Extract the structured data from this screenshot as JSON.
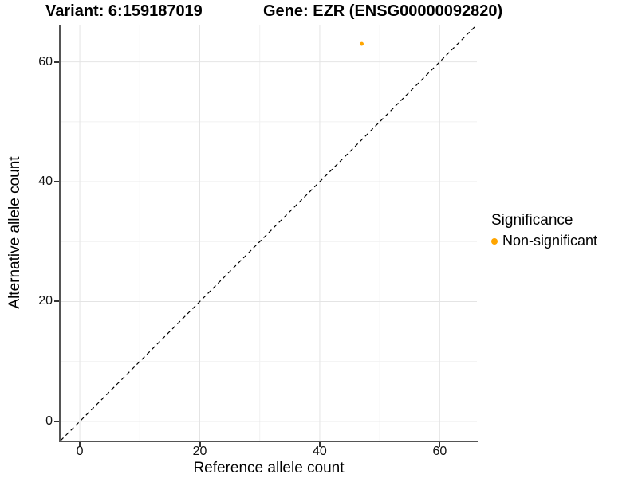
{
  "header": {
    "variant_title": "Variant: 6:159187019",
    "gene_title": "Gene: EZR (ENSG00000092820)"
  },
  "legend": {
    "title": "Significance",
    "items": [
      {
        "label": "Non-significant",
        "color": "#FFA500"
      }
    ]
  },
  "chart_data": {
    "type": "scatter",
    "title": "Variant: 6:159187019 — Gene: EZR (ENSG00000092820)",
    "xlabel": "Reference allele count",
    "ylabel": "Alternative allele count",
    "xlim": [
      -3.2,
      66.2
    ],
    "ylim": [
      -3.2,
      66.2
    ],
    "x_ticks": [
      0,
      20,
      40,
      60
    ],
    "y_ticks": [
      0,
      20,
      40,
      60
    ],
    "x_minor_ticks": [
      10,
      30,
      50
    ],
    "y_minor_ticks": [
      10,
      30,
      50
    ],
    "grid": true,
    "legend_position": "right",
    "series": [
      {
        "name": "Non-significant",
        "color": "#FFA500",
        "points": [
          {
            "x": 47,
            "y": 63
          }
        ]
      }
    ],
    "reference_line": {
      "kind": "identity y=x",
      "style": "dashed",
      "color": "#000000"
    }
  },
  "style_colors": {
    "axis_line": "#555555",
    "tick_mark": "#333333",
    "tick_label": "#111111",
    "grid_major": "#e4e4e4",
    "grid_minor": "#f1f1f1"
  }
}
